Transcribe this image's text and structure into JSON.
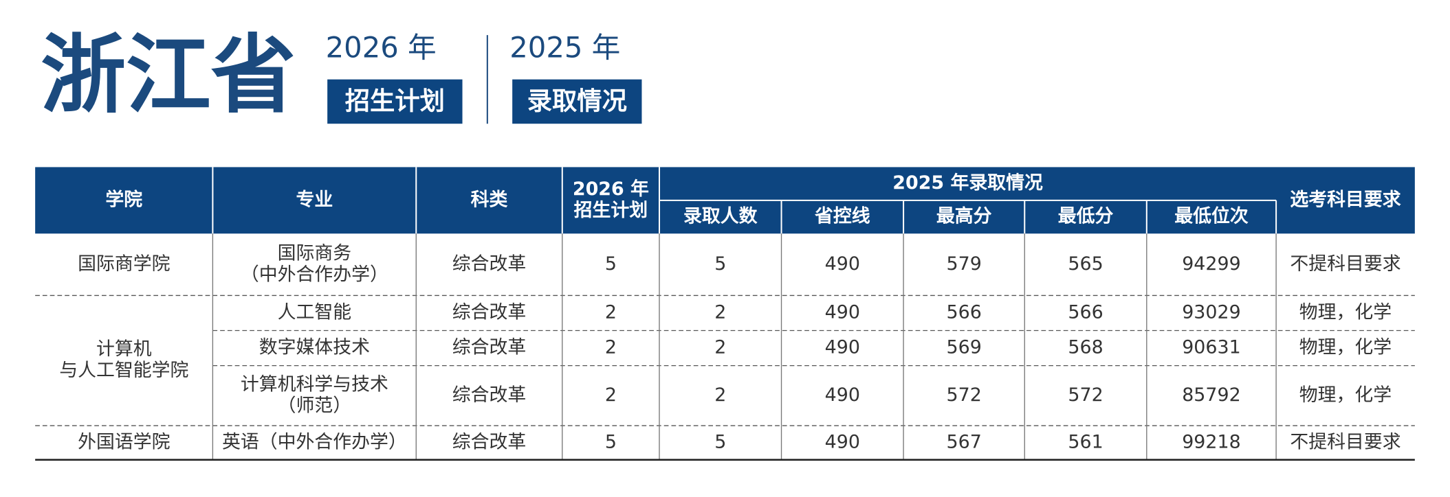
{
  "header": {
    "province": "浙江省",
    "plan_year": "2026 年",
    "plan_label": "招生计划",
    "admit_year": "2025 年",
    "admit_label": "录取情况"
  },
  "table": {
    "columns": [
      "学院",
      "专业",
      "科类",
      [
        "2026 年",
        "招生计划"
      ]
    ],
    "group": "2025 年录取情况",
    "group_columns": [
      "录取人数",
      "省控线",
      "最高分",
      "最低分",
      "最低位次"
    ],
    "last_column": "选考科目要求",
    "colleges": [
      {
        "name": [
          "国际商学院"
        ],
        "rows": [
          {
            "major": [
              "国际商务",
              "（中外合作办学）"
            ],
            "cells": [
              "综合改革",
              5,
              5,
              490,
              579,
              565,
              94299,
              "不提科目要求"
            ]
          }
        ]
      },
      {
        "name": [
          "计算机",
          "与人工智能学院"
        ],
        "rows": [
          {
            "major": [
              "人工智能"
            ],
            "cells": [
              "综合改革",
              2,
              2,
              490,
              566,
              566,
              93029,
              "物理，化学"
            ]
          },
          {
            "major": [
              "数字媒体技术"
            ],
            "cells": [
              "综合改革",
              2,
              2,
              490,
              569,
              568,
              90631,
              "物理，化学"
            ]
          },
          {
            "major": [
              "计算机科学与技术",
              "（师范）"
            ],
            "cells": [
              "综合改革",
              2,
              2,
              490,
              572,
              572,
              85792,
              "物理，化学"
            ]
          }
        ]
      },
      {
        "name": [
          "外国语学院"
        ],
        "rows": [
          {
            "major": [
              "英语（中外合作办学）"
            ],
            "cells": [
              "综合改革",
              5,
              5,
              490,
              567,
              561,
              99218,
              "不提科目要求"
            ]
          }
        ]
      }
    ]
  }
}
